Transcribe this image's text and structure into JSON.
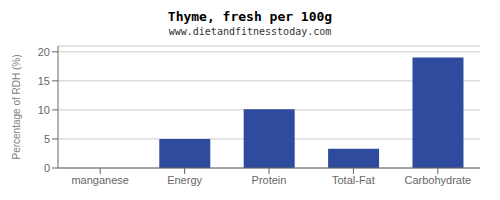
{
  "chart_data": {
    "type": "bar",
    "title": "Thyme, fresh per 100g",
    "subtitle": "www.dietandfitnesstoday.com",
    "categories": [
      "manganese",
      "Energy",
      "Protein",
      "Total-Fat",
      "Carbohydrate"
    ],
    "values": [
      0.0,
      5.0,
      10.1,
      3.3,
      19.0
    ],
    "color": "#2e4b9e",
    "ylabel": "Percentage of RDH (%)",
    "ylim": [
      0,
      21
    ],
    "yticks": [
      0,
      5,
      10,
      15,
      20
    ],
    "grid": true
  }
}
